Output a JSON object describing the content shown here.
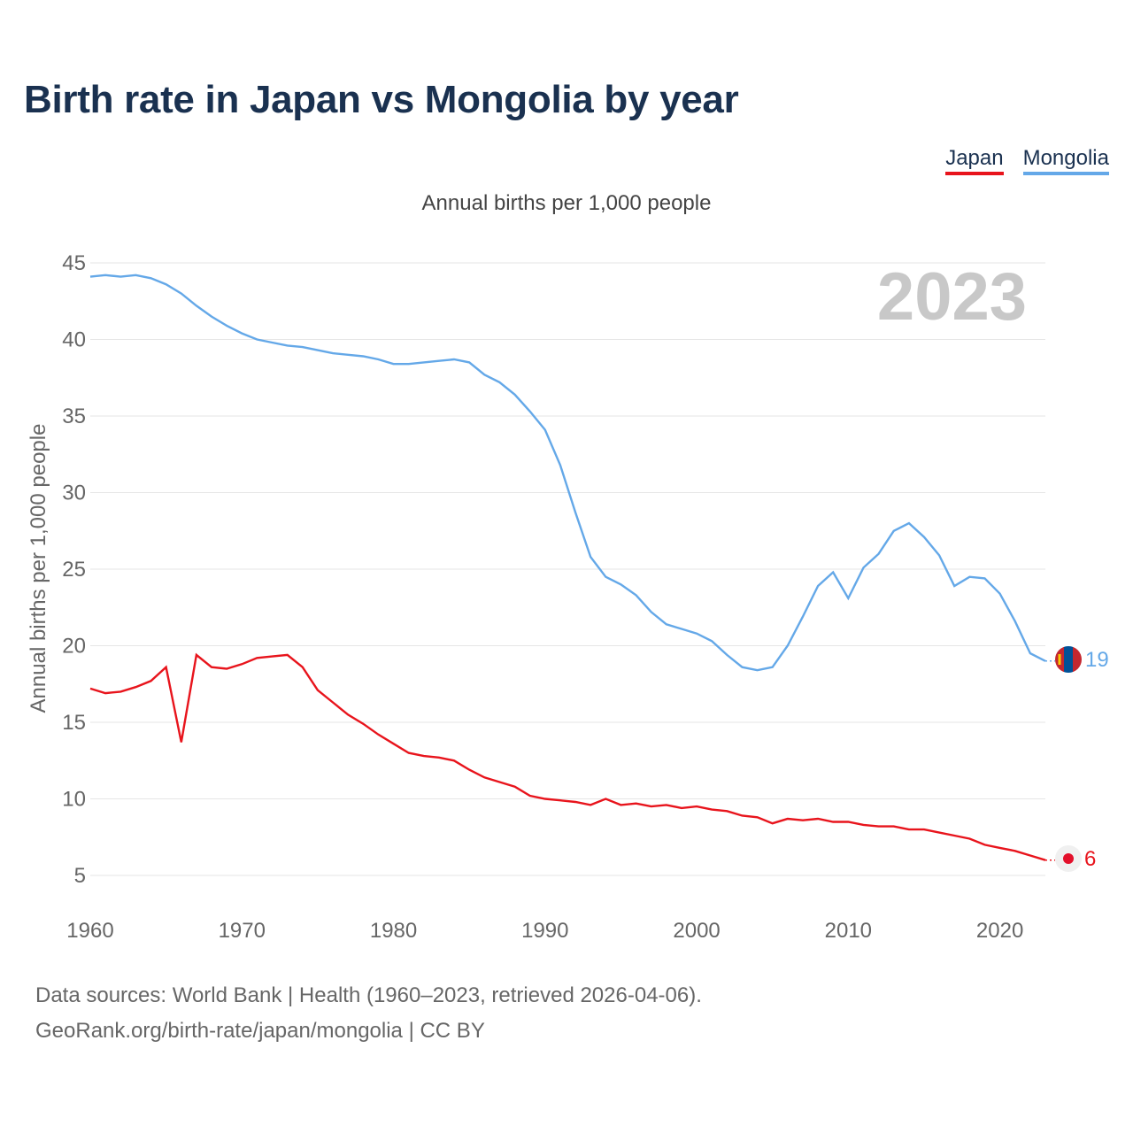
{
  "title": "Birth rate in Japan vs Mongolia by year",
  "legend": [
    {
      "label": "Japan",
      "color": "#e8141c"
    },
    {
      "label": "Mongolia",
      "color": "#64a8e8"
    }
  ],
  "subtitle": "Annual births per 1,000 people",
  "year_badge": "2023",
  "chart_data": {
    "type": "line",
    "title": "Birth rate in Japan vs Mongolia by year",
    "xlabel": "",
    "ylabel": "Annual births per 1,000 people",
    "xlim": [
      1960,
      2023
    ],
    "ylim": [
      3,
      46
    ],
    "xticks": [
      1960,
      1970,
      1980,
      1990,
      2000,
      2010,
      2020
    ],
    "yticks": [
      5,
      10,
      15,
      20,
      25,
      30,
      35,
      40,
      45
    ],
    "grid": true,
    "x": [
      1960,
      1961,
      1962,
      1963,
      1964,
      1965,
      1966,
      1967,
      1968,
      1969,
      1970,
      1971,
      1972,
      1973,
      1974,
      1975,
      1976,
      1977,
      1978,
      1979,
      1980,
      1981,
      1982,
      1983,
      1984,
      1985,
      1986,
      1987,
      1988,
      1989,
      1990,
      1991,
      1992,
      1993,
      1994,
      1995,
      1996,
      1997,
      1998,
      1999,
      2000,
      2001,
      2002,
      2003,
      2004,
      2005,
      2006,
      2007,
      2008,
      2009,
      2010,
      2011,
      2012,
      2013,
      2014,
      2015,
      2016,
      2017,
      2018,
      2019,
      2020,
      2021,
      2022,
      2023
    ],
    "series": [
      {
        "name": "Japan",
        "color": "#e8141c",
        "end_label": "6",
        "values": [
          17.2,
          16.9,
          17.0,
          17.3,
          17.7,
          18.6,
          13.7,
          19.4,
          18.6,
          18.5,
          18.8,
          19.2,
          19.3,
          19.4,
          18.6,
          17.1,
          16.3,
          15.5,
          14.9,
          14.2,
          13.6,
          13.0,
          12.8,
          12.7,
          12.5,
          11.9,
          11.4,
          11.1,
          10.8,
          10.2,
          10.0,
          9.9,
          9.8,
          9.6,
          10.0,
          9.6,
          9.7,
          9.5,
          9.6,
          9.4,
          9.5,
          9.3,
          9.2,
          8.9,
          8.8,
          8.4,
          8.7,
          8.6,
          8.7,
          8.5,
          8.5,
          8.3,
          8.2,
          8.2,
          8.0,
          8.0,
          7.8,
          7.6,
          7.4,
          7.0,
          6.8,
          6.6,
          6.3,
          6.0
        ]
      },
      {
        "name": "Mongolia",
        "color": "#64a8e8",
        "end_label": "19",
        "values": [
          44.1,
          44.2,
          44.1,
          44.2,
          44.0,
          43.6,
          43.0,
          42.2,
          41.5,
          40.9,
          40.4,
          40.0,
          39.8,
          39.6,
          39.5,
          39.3,
          39.1,
          39.0,
          38.9,
          38.7,
          38.4,
          38.4,
          38.5,
          38.6,
          38.7,
          38.5,
          37.7,
          37.2,
          36.4,
          35.3,
          34.1,
          31.8,
          28.7,
          25.8,
          24.5,
          24.0,
          23.3,
          22.2,
          21.4,
          21.1,
          20.8,
          20.3,
          19.4,
          18.6,
          18.4,
          18.6,
          20.0,
          21.9,
          23.9,
          24.8,
          23.1,
          25.1,
          26.0,
          27.5,
          28.0,
          27.1,
          25.9,
          23.9,
          24.5,
          24.4,
          23.4,
          21.6,
          19.5,
          19.0
        ]
      }
    ]
  },
  "footer": {
    "sources": "Data sources: World Bank | Health (1960–2023, retrieved 2026-04-06).",
    "credit": "GeoRank.org/birth-rate/japan/mongolia | CC BY"
  }
}
